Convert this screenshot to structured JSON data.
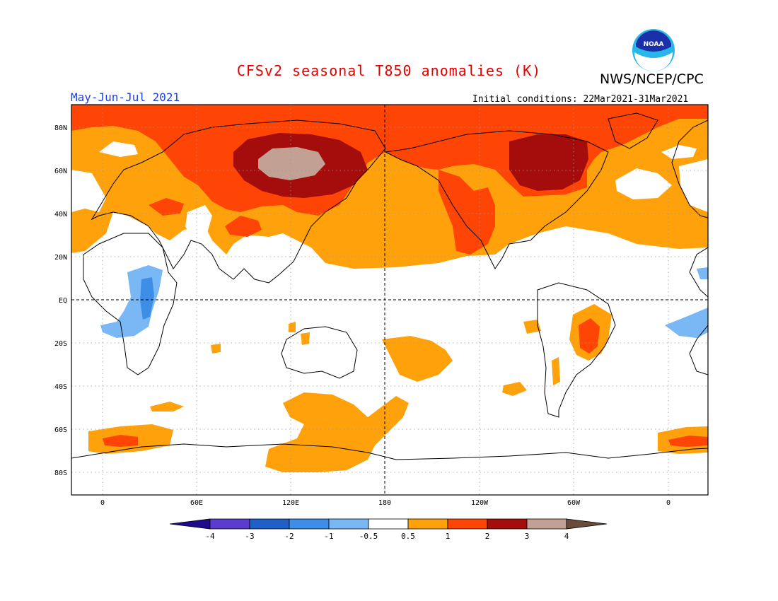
{
  "header": {
    "title": "CFSv2 seasonal T850 anomalies (K)",
    "title_color": "#e60000",
    "org": "NWS/NCEP/CPC",
    "period": "May-Jun-Jul 2021",
    "period_color": "#1a3fe6",
    "initial_conditions": "Initial conditions: 22Mar2021-31Mar2021",
    "logo_text": "NOAA"
  },
  "map": {
    "lat_labels": [
      "80N",
      "60N",
      "40N",
      "20N",
      "EQ",
      "20S",
      "40S",
      "60S",
      "80S"
    ],
    "lon_labels": [
      "0",
      "60E",
      "120E",
      "180",
      "120W",
      "60W",
      "0"
    ]
  },
  "legend": {
    "labels": [
      "-4",
      "-3",
      "-2",
      "-1",
      "-0.5",
      "0.5",
      "1",
      "2",
      "3",
      "4"
    ],
    "colors": {
      "below_-4": "#1e0a8c",
      "-4_-3": "#5a3ccf",
      "-3_-2": "#1f5fc8",
      "-2_-1": "#3d8ee6",
      "-1_-0.5": "#7ab7f5",
      "-0.5_0.5": "#ffffff",
      "0.5_1": "#ffa10a",
      "1_2": "#ff4505",
      "2_3": "#a50d0d",
      "3_4": "#c2a093",
      "above_4": "#6a4a3a"
    }
  }
}
